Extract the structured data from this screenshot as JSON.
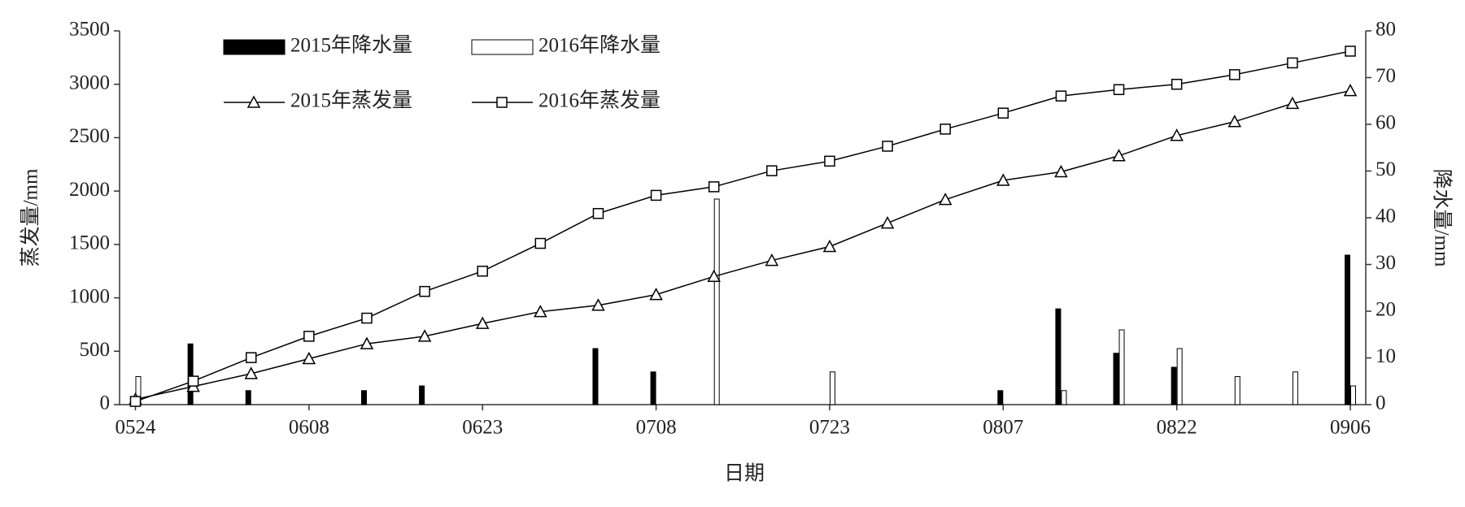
{
  "chart_data": {
    "type": "combo",
    "x_label": "日期",
    "y_label": "蒸发量/mm",
    "y2_label": "降水量/mm",
    "categories": [
      "0524",
      null,
      null,
      "0608",
      null,
      null,
      "0623",
      null,
      null,
      "0708",
      null,
      null,
      "0723",
      null,
      null,
      "0807",
      null,
      null,
      "0822",
      null,
      null,
      "0906"
    ],
    "ylim": [
      0,
      3500
    ],
    "yticks": [
      0,
      500,
      1000,
      1500,
      2000,
      2500,
      3000,
      3500
    ],
    "y2lim": [
      0,
      80
    ],
    "y2ticks": [
      0,
      10,
      20,
      30,
      40,
      50,
      60,
      70,
      80
    ],
    "series": [
      {
        "name": "2015年降水量",
        "type": "bar",
        "axis": "y2",
        "color": "#000000",
        "values": [
          0,
          13,
          3,
          0,
          3,
          4,
          0,
          0,
          12,
          7,
          0,
          0,
          0,
          0,
          0,
          3,
          20.5,
          11,
          8,
          0,
          0,
          32
        ]
      },
      {
        "name": "2016年降水量",
        "type": "bar",
        "axis": "y2",
        "color": "#ffffff",
        "values": [
          6,
          0,
          0,
          0,
          0,
          0,
          0,
          0,
          0,
          0,
          44,
          0,
          7,
          0,
          0,
          0,
          3,
          16,
          12,
          6,
          7,
          4
        ]
      },
      {
        "name": "2015年蒸发量",
        "type": "line",
        "marker": "triangle",
        "color": "#000000",
        "values": [
          50,
          170,
          290,
          430,
          570,
          640,
          760,
          870,
          930,
          1030,
          1200,
          1350,
          1480,
          1700,
          1920,
          2100,
          2180,
          2330,
          2520,
          2650,
          2820,
          2940
        ]
      },
      {
        "name": "2016年蒸发量",
        "type": "line",
        "marker": "square",
        "color": "#000000",
        "values": [
          30,
          220,
          440,
          640,
          810,
          1060,
          1250,
          1510,
          1790,
          1960,
          2040,
          2190,
          2280,
          2420,
          2580,
          2730,
          2890,
          2950,
          3000,
          3090,
          3200,
          3310
        ]
      }
    ]
  }
}
